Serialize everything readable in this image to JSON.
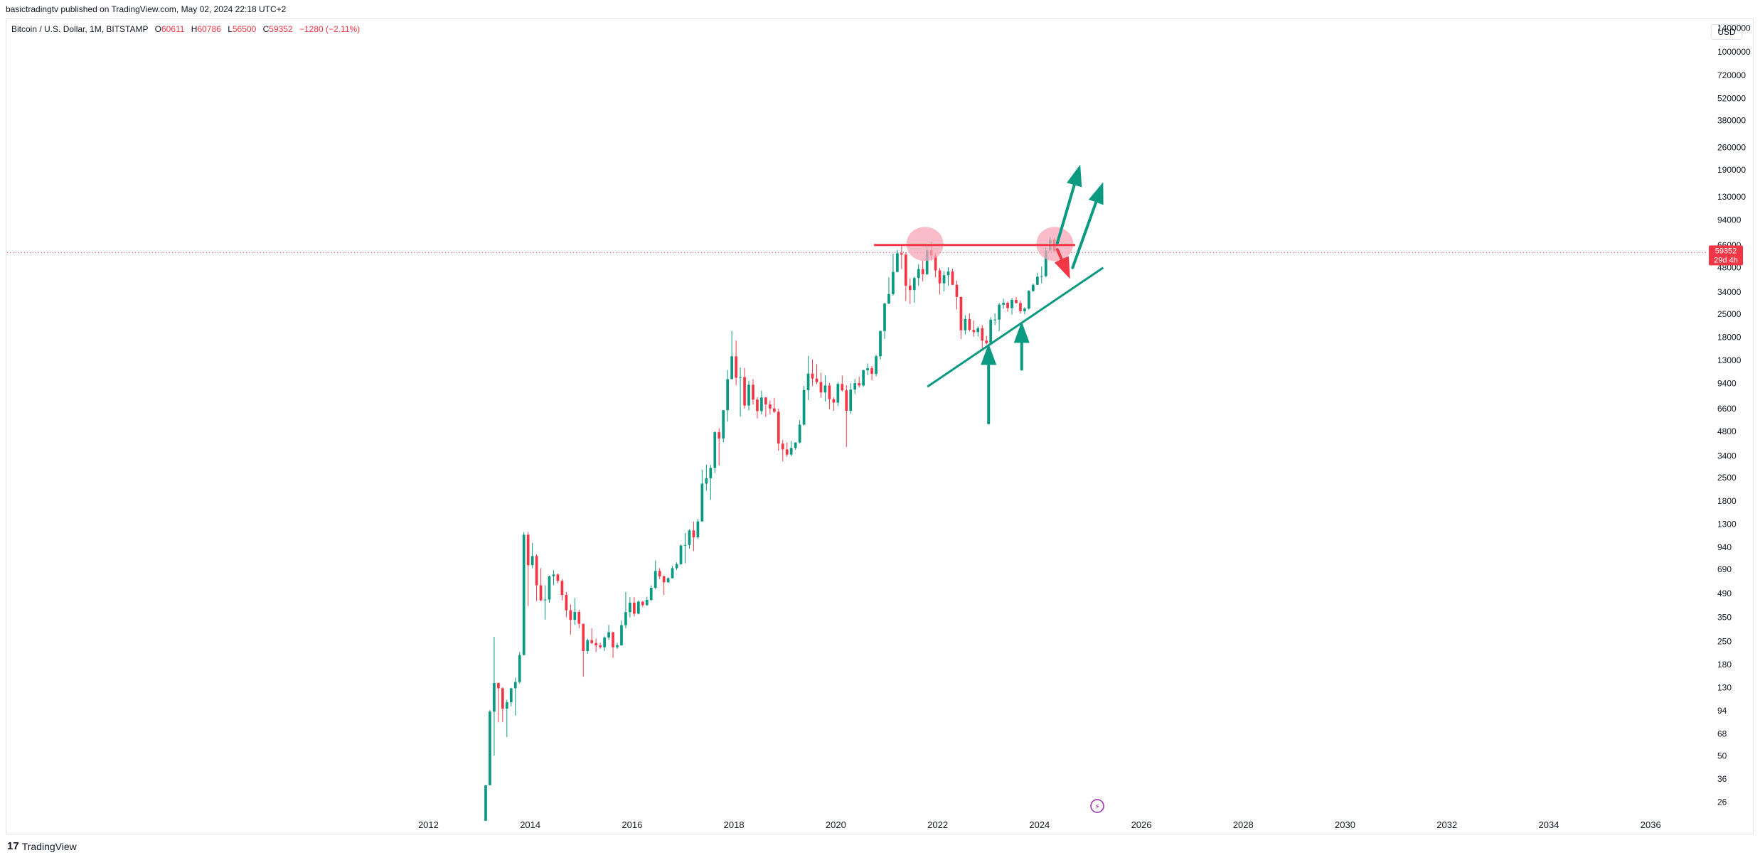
{
  "header": {
    "published": "basictradingtv published on TradingView.com, May 02, 2024 22:18 UTC+2"
  },
  "legend": {
    "symbol": "Bitcoin / U.S. Dollar, 1M, BITSTAMP",
    "open_label": "O",
    "open": "60611",
    "high_label": "H",
    "high": "60786",
    "low_label": "L",
    "low": "56500",
    "close_label": "C",
    "close": "59352",
    "change": "−1280 (−2.11%)"
  },
  "currency_button": "USD",
  "price_tag": {
    "price": "59352",
    "countdown": "29d 4h"
  },
  "brand": {
    "mark": "17",
    "name": "TradingView"
  },
  "colors": {
    "up": "#089981",
    "down": "#f23645",
    "annotation_green": "#0a9a82",
    "annotation_red": "#f23645",
    "highlight": "#f7a6b6",
    "lightning": "#9c27b0"
  },
  "chart_data": {
    "type": "candlestick",
    "title": "Bitcoin / U.S. Dollar, 1M, BITSTAMP",
    "scale": "log",
    "ylim": [
      21,
      1600000
    ],
    "xlim": [
      2003.7,
      2037.1
    ],
    "y_ticks": [
      "1400000",
      "1000000",
      "720000",
      "520000",
      "380000",
      "260000",
      "190000",
      "130000",
      "94000",
      "66000",
      "48000",
      "34000",
      "25000",
      "18000",
      "13000",
      "9400",
      "6600",
      "4800",
      "3400",
      "2500",
      "1800",
      "1300",
      "940",
      "690",
      "490",
      "350",
      "250",
      "180",
      "130",
      "94",
      "68",
      "50",
      "36",
      "26"
    ],
    "x_ticks": [
      "2012",
      "2014",
      "2016",
      "2018",
      "2020",
      "2022",
      "2024",
      "2026",
      "2028",
      "2030",
      "2032",
      "2034",
      "2036"
    ],
    "current_price": 59352,
    "candles": [
      {
        "t": "2013-02",
        "o": 20,
        "h": 33,
        "l": 20,
        "c": 33
      },
      {
        "t": "2013-03",
        "o": 33,
        "h": 95,
        "l": 33,
        "c": 93
      },
      {
        "t": "2013-04",
        "o": 93,
        "h": 266,
        "l": 50,
        "c": 139
      },
      {
        "t": "2013-05",
        "o": 139,
        "h": 140,
        "l": 80,
        "c": 129
      },
      {
        "t": "2013-06",
        "o": 129,
        "h": 131,
        "l": 80,
        "c": 97
      },
      {
        "t": "2013-07",
        "o": 97,
        "h": 110,
        "l": 65,
        "c": 106
      },
      {
        "t": "2013-08",
        "o": 106,
        "h": 130,
        "l": 100,
        "c": 129
      },
      {
        "t": "2013-09",
        "o": 129,
        "h": 150,
        "l": 88,
        "c": 141
      },
      {
        "t": "2013-10",
        "o": 141,
        "h": 215,
        "l": 138,
        "c": 206
      },
      {
        "t": "2013-11",
        "o": 206,
        "h": 1163,
        "l": 205,
        "c": 1120
      },
      {
        "t": "2013-12",
        "o": 1120,
        "h": 1163,
        "l": 410,
        "c": 730
      },
      {
        "t": "2014-01",
        "o": 730,
        "h": 1000,
        "l": 700,
        "c": 830
      },
      {
        "t": "2014-02",
        "o": 830,
        "h": 850,
        "l": 440,
        "c": 550
      },
      {
        "t": "2014-03",
        "o": 550,
        "h": 700,
        "l": 440,
        "c": 445
      },
      {
        "t": "2014-04",
        "o": 445,
        "h": 550,
        "l": 340,
        "c": 450
      },
      {
        "t": "2014-05",
        "o": 450,
        "h": 630,
        "l": 430,
        "c": 625
      },
      {
        "t": "2014-06",
        "o": 625,
        "h": 680,
        "l": 550,
        "c": 640
      },
      {
        "t": "2014-07",
        "o": 640,
        "h": 650,
        "l": 565,
        "c": 585
      },
      {
        "t": "2014-08",
        "o": 585,
        "h": 600,
        "l": 445,
        "c": 480
      },
      {
        "t": "2014-09",
        "o": 480,
        "h": 500,
        "l": 350,
        "c": 387
      },
      {
        "t": "2014-10",
        "o": 387,
        "h": 420,
        "l": 275,
        "c": 338
      },
      {
        "t": "2014-11",
        "o": 338,
        "h": 460,
        "l": 315,
        "c": 378
      },
      {
        "t": "2014-12",
        "o": 378,
        "h": 390,
        "l": 300,
        "c": 320
      },
      {
        "t": "2015-01",
        "o": 320,
        "h": 320,
        "l": 152,
        "c": 218
      },
      {
        "t": "2015-02",
        "o": 218,
        "h": 260,
        "l": 210,
        "c": 254
      },
      {
        "t": "2015-03",
        "o": 254,
        "h": 300,
        "l": 240,
        "c": 244
      },
      {
        "t": "2015-04",
        "o": 244,
        "h": 260,
        "l": 215,
        "c": 236
      },
      {
        "t": "2015-05",
        "o": 236,
        "h": 245,
        "l": 225,
        "c": 230
      },
      {
        "t": "2015-06",
        "o": 230,
        "h": 268,
        "l": 218,
        "c": 264
      },
      {
        "t": "2015-07",
        "o": 264,
        "h": 315,
        "l": 255,
        "c": 284
      },
      {
        "t": "2015-08",
        "o": 284,
        "h": 286,
        "l": 198,
        "c": 230
      },
      {
        "t": "2015-09",
        "o": 230,
        "h": 245,
        "l": 225,
        "c": 236
      },
      {
        "t": "2015-10",
        "o": 236,
        "h": 335,
        "l": 235,
        "c": 314
      },
      {
        "t": "2015-11",
        "o": 314,
        "h": 500,
        "l": 300,
        "c": 377
      },
      {
        "t": "2015-12",
        "o": 377,
        "h": 465,
        "l": 350,
        "c": 431
      },
      {
        "t": "2016-01",
        "o": 431,
        "h": 465,
        "l": 355,
        "c": 369
      },
      {
        "t": "2016-02",
        "o": 369,
        "h": 445,
        "l": 365,
        "c": 437
      },
      {
        "t": "2016-03",
        "o": 437,
        "h": 440,
        "l": 405,
        "c": 416
      },
      {
        "t": "2016-04",
        "o": 416,
        "h": 468,
        "l": 412,
        "c": 448
      },
      {
        "t": "2016-05",
        "o": 448,
        "h": 550,
        "l": 440,
        "c": 531
      },
      {
        "t": "2016-06",
        "o": 531,
        "h": 780,
        "l": 520,
        "c": 673
      },
      {
        "t": "2016-07",
        "o": 673,
        "h": 700,
        "l": 600,
        "c": 624
      },
      {
        "t": "2016-08",
        "o": 624,
        "h": 630,
        "l": 480,
        "c": 574
      },
      {
        "t": "2016-09",
        "o": 574,
        "h": 615,
        "l": 570,
        "c": 608
      },
      {
        "t": "2016-10",
        "o": 608,
        "h": 720,
        "l": 605,
        "c": 700
      },
      {
        "t": "2016-11",
        "o": 700,
        "h": 760,
        "l": 680,
        "c": 740
      },
      {
        "t": "2016-12",
        "o": 740,
        "h": 975,
        "l": 735,
        "c": 963
      },
      {
        "t": "2017-01",
        "o": 963,
        "h": 1150,
        "l": 750,
        "c": 970
      },
      {
        "t": "2017-02",
        "o": 970,
        "h": 1210,
        "l": 920,
        "c": 1190
      },
      {
        "t": "2017-03",
        "o": 1190,
        "h": 1350,
        "l": 890,
        "c": 1080
      },
      {
        "t": "2017-04",
        "o": 1080,
        "h": 1400,
        "l": 1060,
        "c": 1350
      },
      {
        "t": "2017-05",
        "o": 1350,
        "h": 2800,
        "l": 1350,
        "c": 2300
      },
      {
        "t": "2017-06",
        "o": 2300,
        "h": 3000,
        "l": 2080,
        "c": 2480
      },
      {
        "t": "2017-07",
        "o": 2480,
        "h": 2990,
        "l": 1830,
        "c": 2870
      },
      {
        "t": "2017-08",
        "o": 2870,
        "h": 4800,
        "l": 2670,
        "c": 4740
      },
      {
        "t": "2017-09",
        "o": 4740,
        "h": 5000,
        "l": 2970,
        "c": 4340
      },
      {
        "t": "2017-10",
        "o": 4340,
        "h": 6470,
        "l": 4100,
        "c": 6460
      },
      {
        "t": "2017-11",
        "o": 6460,
        "h": 11400,
        "l": 5500,
        "c": 10000
      },
      {
        "t": "2017-12",
        "o": 10000,
        "h": 19700,
        "l": 10000,
        "c": 13800
      },
      {
        "t": "2018-01",
        "o": 13800,
        "h": 17200,
        "l": 9200,
        "c": 10200
      },
      {
        "t": "2018-02",
        "o": 10200,
        "h": 11780,
        "l": 5900,
        "c": 10300
      },
      {
        "t": "2018-03",
        "o": 10300,
        "h": 11700,
        "l": 6600,
        "c": 6900
      },
      {
        "t": "2018-04",
        "o": 6900,
        "h": 9800,
        "l": 6450,
        "c": 9240
      },
      {
        "t": "2018-05",
        "o": 9240,
        "h": 9990,
        "l": 7000,
        "c": 7500
      },
      {
        "t": "2018-06",
        "o": 7500,
        "h": 7770,
        "l": 5750,
        "c": 6380
      },
      {
        "t": "2018-07",
        "o": 6380,
        "h": 8500,
        "l": 6070,
        "c": 7730
      },
      {
        "t": "2018-08",
        "o": 7730,
        "h": 7770,
        "l": 5880,
        "c": 7010
      },
      {
        "t": "2018-09",
        "o": 7010,
        "h": 7410,
        "l": 6120,
        "c": 6620
      },
      {
        "t": "2018-10",
        "o": 6620,
        "h": 7680,
        "l": 6200,
        "c": 6320
      },
      {
        "t": "2018-11",
        "o": 6320,
        "h": 6600,
        "l": 3650,
        "c": 4040
      },
      {
        "t": "2018-12",
        "o": 4040,
        "h": 4250,
        "l": 3150,
        "c": 3720
      },
      {
        "t": "2019-01",
        "o": 3720,
        "h": 4100,
        "l": 3350,
        "c": 3460
      },
      {
        "t": "2019-02",
        "o": 3460,
        "h": 4200,
        "l": 3380,
        "c": 3800
      },
      {
        "t": "2019-03",
        "o": 3800,
        "h": 4120,
        "l": 3700,
        "c": 4100
      },
      {
        "t": "2019-04",
        "o": 4100,
        "h": 5620,
        "l": 4050,
        "c": 5270
      },
      {
        "t": "2019-05",
        "o": 5270,
        "h": 9100,
        "l": 5210,
        "c": 8570
      },
      {
        "t": "2019-06",
        "o": 8570,
        "h": 13880,
        "l": 7450,
        "c": 10820
      },
      {
        "t": "2019-07",
        "o": 10820,
        "h": 13200,
        "l": 9070,
        "c": 10080
      },
      {
        "t": "2019-08",
        "o": 10080,
        "h": 12330,
        "l": 9320,
        "c": 9600
      },
      {
        "t": "2019-09",
        "o": 9600,
        "h": 10940,
        "l": 7700,
        "c": 8290
      },
      {
        "t": "2019-10",
        "o": 8290,
        "h": 10540,
        "l": 7300,
        "c": 9150
      },
      {
        "t": "2019-11",
        "o": 9150,
        "h": 9500,
        "l": 6530,
        "c": 7550
      },
      {
        "t": "2019-12",
        "o": 7550,
        "h": 7740,
        "l": 6410,
        "c": 7190
      },
      {
        "t": "2020-01",
        "o": 7190,
        "h": 9580,
        "l": 6850,
        "c": 9350
      },
      {
        "t": "2020-02",
        "o": 9350,
        "h": 10500,
        "l": 8400,
        "c": 8540
      },
      {
        "t": "2020-03",
        "o": 8540,
        "h": 9180,
        "l": 3850,
        "c": 6410
      },
      {
        "t": "2020-04",
        "o": 6410,
        "h": 9460,
        "l": 6150,
        "c": 8630
      },
      {
        "t": "2020-05",
        "o": 8630,
        "h": 10080,
        "l": 8100,
        "c": 9450
      },
      {
        "t": "2020-06",
        "o": 9450,
        "h": 10380,
        "l": 8900,
        "c": 9140
      },
      {
        "t": "2020-07",
        "o": 9140,
        "h": 11450,
        "l": 8970,
        "c": 11350
      },
      {
        "t": "2020-08",
        "o": 11350,
        "h": 12470,
        "l": 10600,
        "c": 11660
      },
      {
        "t": "2020-09",
        "o": 11660,
        "h": 12050,
        "l": 9850,
        "c": 10780
      },
      {
        "t": "2020-10",
        "o": 10780,
        "h": 14100,
        "l": 10400,
        "c": 13800
      },
      {
        "t": "2020-11",
        "o": 13800,
        "h": 19800,
        "l": 13200,
        "c": 19700
      },
      {
        "t": "2020-12",
        "o": 19700,
        "h": 29300,
        "l": 17600,
        "c": 28990
      },
      {
        "t": "2021-01",
        "o": 28990,
        "h": 41900,
        "l": 28700,
        "c": 33100
      },
      {
        "t": "2021-02",
        "o": 33100,
        "h": 58400,
        "l": 32400,
        "c": 45200
      },
      {
        "t": "2021-03",
        "o": 45200,
        "h": 61800,
        "l": 45000,
        "c": 58800
      },
      {
        "t": "2021-04",
        "o": 58800,
        "h": 64900,
        "l": 47000,
        "c": 57700
      },
      {
        "t": "2021-05",
        "o": 57700,
        "h": 59500,
        "l": 30000,
        "c": 37300
      },
      {
        "t": "2021-06",
        "o": 37300,
        "h": 41300,
        "l": 28800,
        "c": 35000
      },
      {
        "t": "2021-07",
        "o": 35000,
        "h": 42300,
        "l": 29300,
        "c": 41500
      },
      {
        "t": "2021-08",
        "o": 41500,
        "h": 50500,
        "l": 37300,
        "c": 47100
      },
      {
        "t": "2021-09",
        "o": 47100,
        "h": 52900,
        "l": 39600,
        "c": 43800
      },
      {
        "t": "2021-10",
        "o": 43800,
        "h": 67000,
        "l": 43300,
        "c": 61300
      },
      {
        "t": "2021-11",
        "o": 61300,
        "h": 69000,
        "l": 53200,
        "c": 56900
      },
      {
        "t": "2021-12",
        "o": 56900,
        "h": 59100,
        "l": 41900,
        "c": 46200
      },
      {
        "t": "2022-01",
        "o": 46200,
        "h": 47900,
        "l": 32900,
        "c": 38500
      },
      {
        "t": "2022-02",
        "o": 38500,
        "h": 45800,
        "l": 34300,
        "c": 43200
      },
      {
        "t": "2022-03",
        "o": 43200,
        "h": 48200,
        "l": 37200,
        "c": 45500
      },
      {
        "t": "2022-04",
        "o": 45500,
        "h": 47400,
        "l": 37600,
        "c": 37700
      },
      {
        "t": "2022-05",
        "o": 37700,
        "h": 40000,
        "l": 26700,
        "c": 31800
      },
      {
        "t": "2022-06",
        "o": 31800,
        "h": 31900,
        "l": 17600,
        "c": 19900
      },
      {
        "t": "2022-07",
        "o": 19900,
        "h": 24600,
        "l": 18800,
        "c": 23300
      },
      {
        "t": "2022-08",
        "o": 23300,
        "h": 25200,
        "l": 19600,
        "c": 20000
      },
      {
        "t": "2022-09",
        "o": 20000,
        "h": 22800,
        "l": 18200,
        "c": 19400
      },
      {
        "t": "2022-10",
        "o": 19400,
        "h": 21000,
        "l": 18200,
        "c": 20500
      },
      {
        "t": "2022-11",
        "o": 20500,
        "h": 21400,
        "l": 15500,
        "c": 17200
      },
      {
        "t": "2022-12",
        "o": 17200,
        "h": 18400,
        "l": 16300,
        "c": 16600
      },
      {
        "t": "2023-01",
        "o": 16600,
        "h": 23900,
        "l": 16500,
        "c": 23100
      },
      {
        "t": "2023-02",
        "o": 23100,
        "h": 25300,
        "l": 21400,
        "c": 23100
      },
      {
        "t": "2023-03",
        "o": 23100,
        "h": 29200,
        "l": 19600,
        "c": 28500
      },
      {
        "t": "2023-04",
        "o": 28500,
        "h": 31000,
        "l": 26900,
        "c": 29300
      },
      {
        "t": "2023-05",
        "o": 29300,
        "h": 29800,
        "l": 25800,
        "c": 27200
      },
      {
        "t": "2023-06",
        "o": 27200,
        "h": 31400,
        "l": 24800,
        "c": 30500
      },
      {
        "t": "2023-07",
        "o": 30500,
        "h": 31800,
        "l": 28900,
        "c": 29200
      },
      {
        "t": "2023-08",
        "o": 29200,
        "h": 30200,
        "l": 25200,
        "c": 26000
      },
      {
        "t": "2023-09",
        "o": 26000,
        "h": 27500,
        "l": 24900,
        "c": 27000
      },
      {
        "t": "2023-10",
        "o": 27000,
        "h": 35000,
        "l": 26600,
        "c": 34600
      },
      {
        "t": "2023-11",
        "o": 34600,
        "h": 38400,
        "l": 34100,
        "c": 37700
      },
      {
        "t": "2023-12",
        "o": 37700,
        "h": 44800,
        "l": 37600,
        "c": 42300
      },
      {
        "t": "2024-01",
        "o": 42300,
        "h": 48900,
        "l": 38500,
        "c": 42600
      },
      {
        "t": "2024-02",
        "o": 42600,
        "h": 64000,
        "l": 41900,
        "c": 61200
      },
      {
        "t": "2024-03",
        "o": 61200,
        "h": 73800,
        "l": 59000,
        "c": 71300
      },
      {
        "t": "2024-04",
        "o": 71300,
        "h": 72800,
        "l": 59600,
        "c": 60600
      },
      {
        "t": "2024-05",
        "o": 60611,
        "h": 60786,
        "l": 56500,
        "c": 59352
      }
    ],
    "annotations": [
      {
        "kind": "horizontal_line",
        "color": "red",
        "x1": 2020.75,
        "x2": 2024.7,
        "y": 66000
      },
      {
        "kind": "trend_line",
        "color": "green",
        "x1": 2021.8,
        "y1": 9000,
        "x2": 2025.25,
        "y2": 48000
      },
      {
        "kind": "highlight_circle",
        "x": 2021.75,
        "y": 67000
      },
      {
        "kind": "highlight_circle",
        "x": 2024.3,
        "y": 67000
      },
      {
        "kind": "arrow",
        "color": "green",
        "x1": 2024.35,
        "y1": 68000,
        "x2": 2024.8,
        "y2": 205000
      },
      {
        "kind": "arrow",
        "color": "green",
        "x1": 2024.65,
        "y1": 48000,
        "x2": 2025.25,
        "y2": 160000
      },
      {
        "kind": "arrow",
        "color": "red",
        "x1": 2024.35,
        "y1": 62000,
        "x2": 2024.6,
        "y2": 41000
      },
      {
        "kind": "arrow",
        "color": "green",
        "x1": 2023.0,
        "y1": 5400,
        "x2": 2023.0,
        "y2": 16500
      },
      {
        "kind": "arrow",
        "color": "green",
        "x1": 2023.65,
        "y1": 11500,
        "x2": 2023.65,
        "y2": 22500
      }
    ]
  }
}
